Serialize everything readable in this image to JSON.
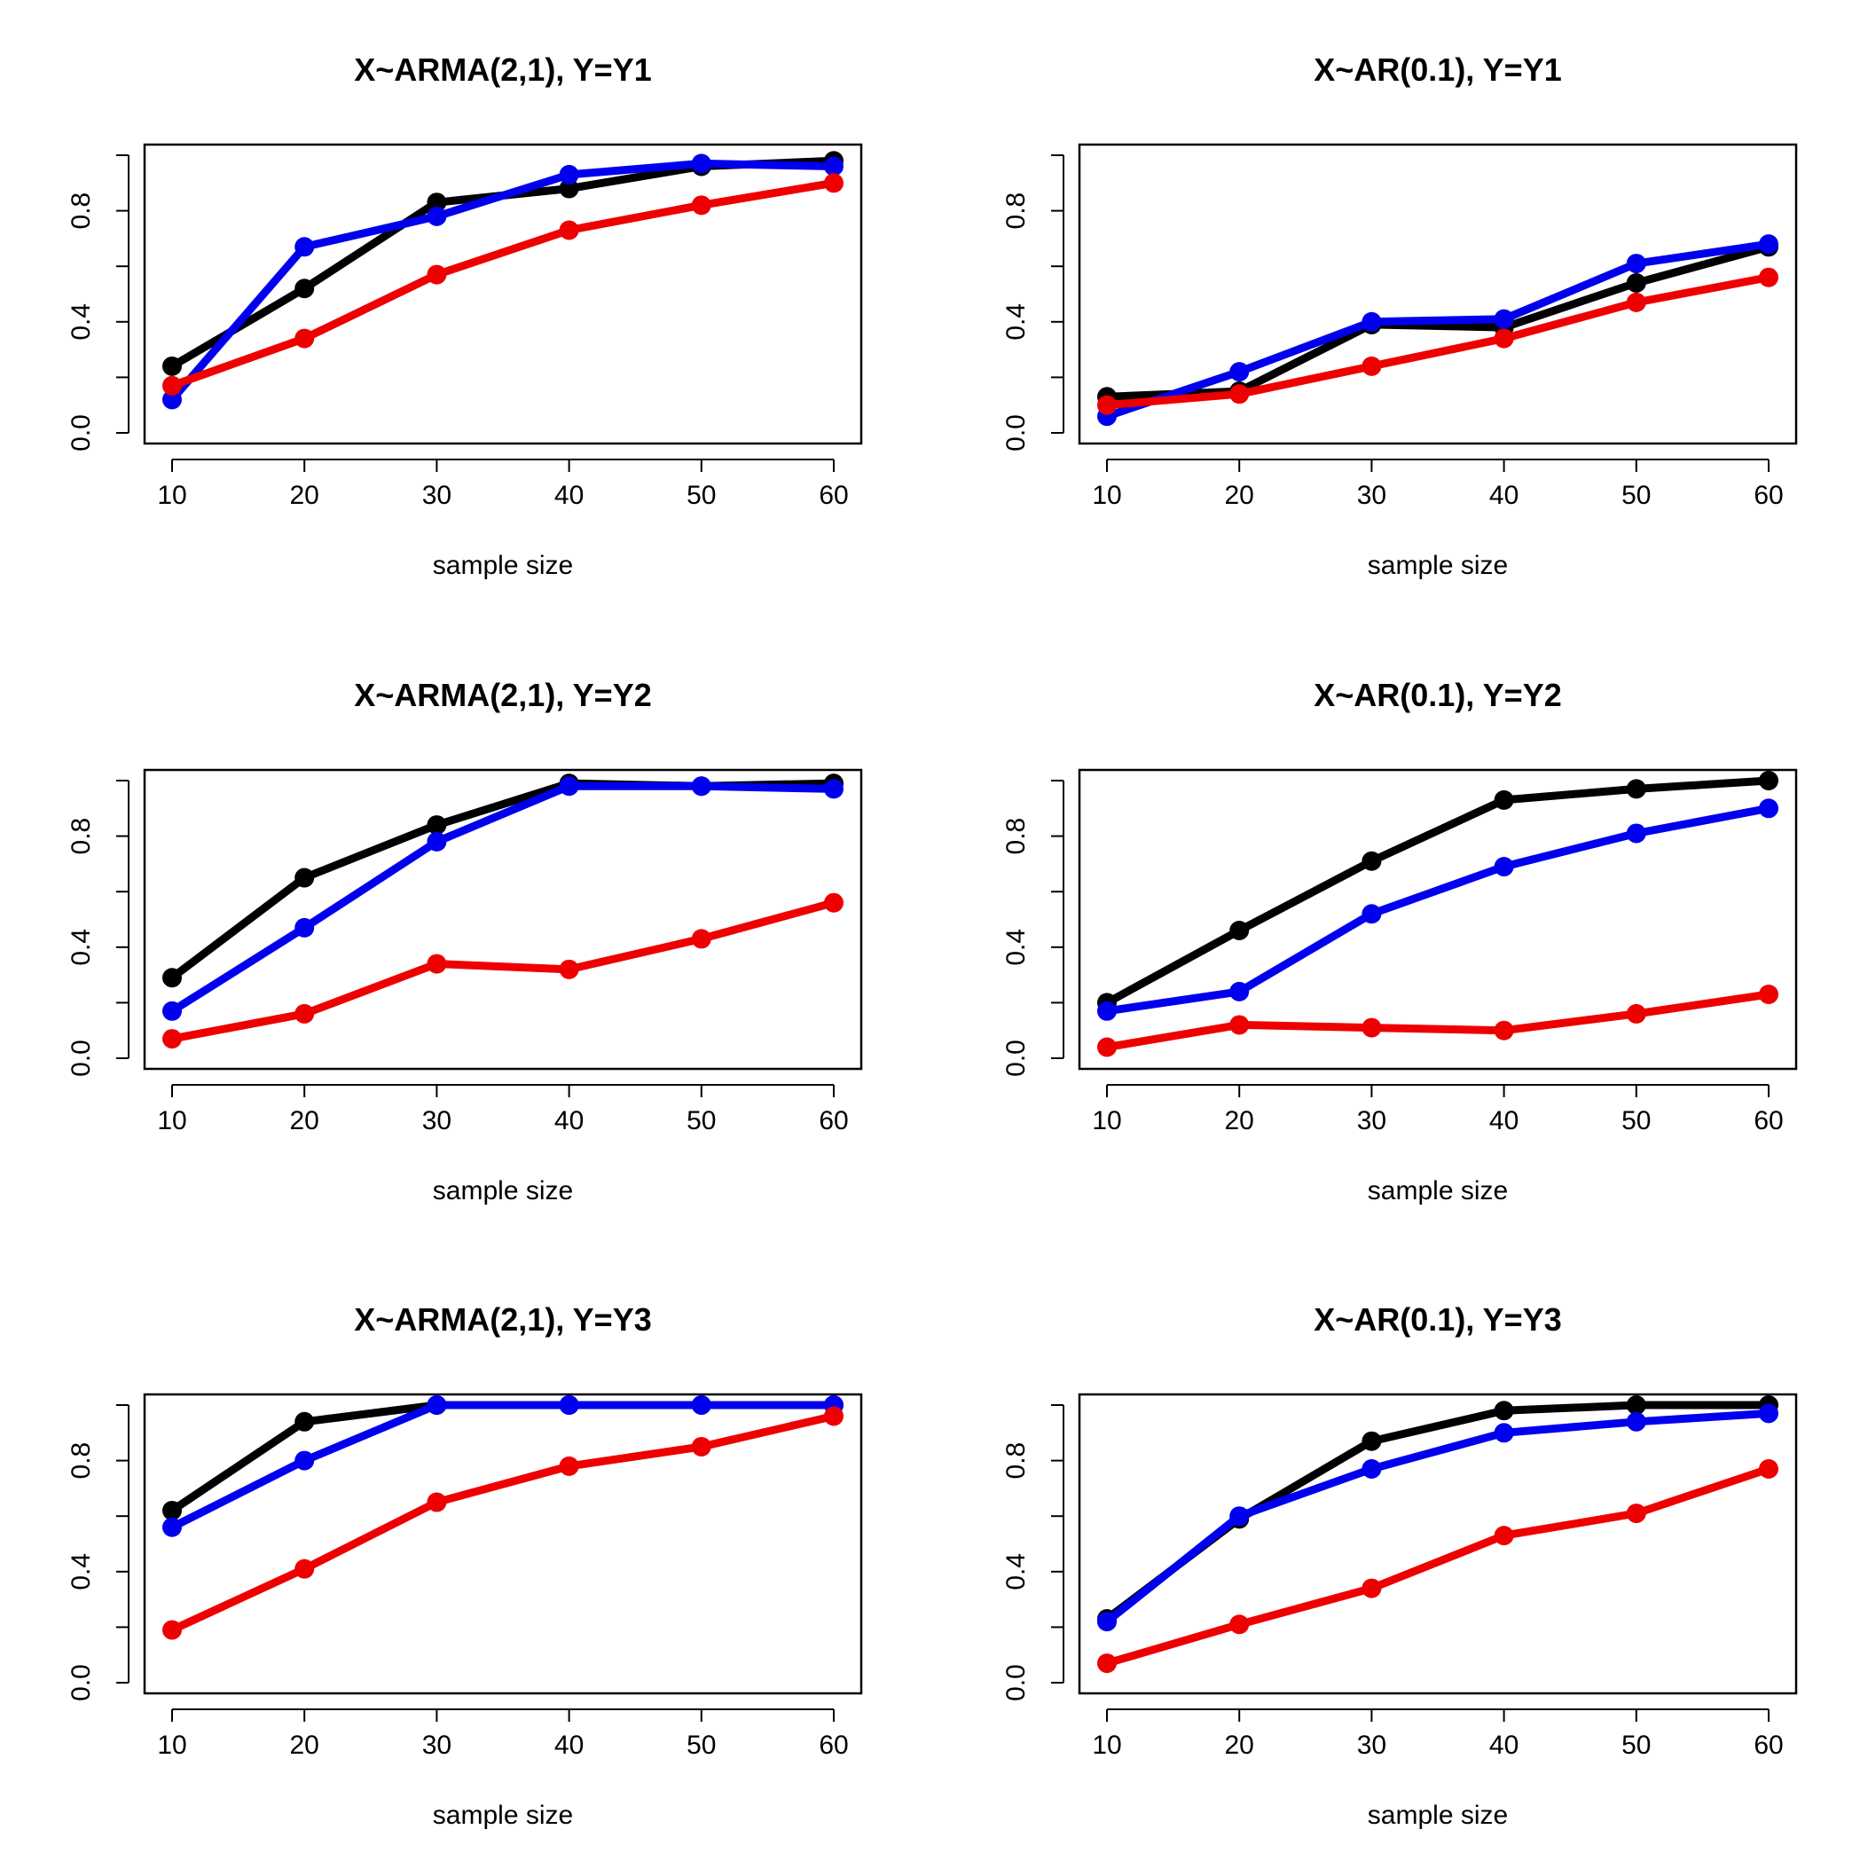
{
  "series_colors": {
    "black": "#000000",
    "blue": "#0000ee",
    "red": "#ee0000"
  },
  "chart_data": [
    {
      "type": "line",
      "title": "X~ARMA(2,1),   Y=Y1",
      "xlabel": "sample size",
      "ylabel": "",
      "x": [
        10,
        20,
        30,
        40,
        50,
        60
      ],
      "xticks": [
        "10",
        "20",
        "30",
        "40",
        "50",
        "60"
      ],
      "yticks": [
        "0.0",
        "0.4",
        "0.8"
      ],
      "ylim": [
        0,
        1
      ],
      "series": [
        {
          "name": "black",
          "values": [
            0.24,
            0.52,
            0.83,
            0.88,
            0.96,
            0.98
          ]
        },
        {
          "name": "blue",
          "values": [
            0.12,
            0.67,
            0.78,
            0.93,
            0.97,
            0.96
          ]
        },
        {
          "name": "red",
          "values": [
            0.17,
            0.34,
            0.57,
            0.73,
            0.82,
            0.9
          ]
        }
      ]
    },
    {
      "type": "line",
      "title": "X~AR(0.1),   Y=Y1",
      "xlabel": "sample size",
      "ylabel": "",
      "x": [
        10,
        20,
        30,
        40,
        50,
        60
      ],
      "xticks": [
        "10",
        "20",
        "30",
        "40",
        "50",
        "60"
      ],
      "yticks": [
        "0.0",
        "0.4",
        "0.8"
      ],
      "ylim": [
        0,
        1
      ],
      "series": [
        {
          "name": "black",
          "values": [
            0.13,
            0.15,
            0.39,
            0.38,
            0.54,
            0.67
          ]
        },
        {
          "name": "blue",
          "values": [
            0.06,
            0.22,
            0.4,
            0.41,
            0.61,
            0.68
          ]
        },
        {
          "name": "red",
          "values": [
            0.1,
            0.14,
            0.24,
            0.34,
            0.47,
            0.56
          ]
        }
      ]
    },
    {
      "type": "line",
      "title": "X~ARMA(2,1),   Y=Y2",
      "xlabel": "sample size",
      "ylabel": "",
      "x": [
        10,
        20,
        30,
        40,
        50,
        60
      ],
      "xticks": [
        "10",
        "20",
        "30",
        "40",
        "50",
        "60"
      ],
      "yticks": [
        "0.0",
        "0.4",
        "0.8"
      ],
      "ylim": [
        0,
        1
      ],
      "series": [
        {
          "name": "black",
          "values": [
            0.29,
            0.65,
            0.84,
            0.99,
            0.98,
            0.99
          ]
        },
        {
          "name": "blue",
          "values": [
            0.17,
            0.47,
            0.78,
            0.98,
            0.98,
            0.97
          ]
        },
        {
          "name": "red",
          "values": [
            0.07,
            0.16,
            0.34,
            0.32,
            0.43,
            0.56
          ]
        }
      ]
    },
    {
      "type": "line",
      "title": "X~AR(0.1),   Y=Y2",
      "xlabel": "sample size",
      "ylabel": "",
      "x": [
        10,
        20,
        30,
        40,
        50,
        60
      ],
      "xticks": [
        "10",
        "20",
        "30",
        "40",
        "50",
        "60"
      ],
      "yticks": [
        "0.0",
        "0.4",
        "0.8"
      ],
      "ylim": [
        0,
        1
      ],
      "series": [
        {
          "name": "black",
          "values": [
            0.2,
            0.46,
            0.71,
            0.93,
            0.97,
            1.0
          ]
        },
        {
          "name": "blue",
          "values": [
            0.17,
            0.24,
            0.52,
            0.69,
            0.81,
            0.9
          ]
        },
        {
          "name": "red",
          "values": [
            0.04,
            0.12,
            0.11,
            0.1,
            0.16,
            0.23
          ]
        }
      ]
    },
    {
      "type": "line",
      "title": "X~ARMA(2,1),   Y=Y3",
      "xlabel": "sample size",
      "ylabel": "",
      "x": [
        10,
        20,
        30,
        40,
        50,
        60
      ],
      "xticks": [
        "10",
        "20",
        "30",
        "40",
        "50",
        "60"
      ],
      "yticks": [
        "0.0",
        "0.4",
        "0.8"
      ],
      "ylim": [
        0,
        1
      ],
      "series": [
        {
          "name": "black",
          "values": [
            0.62,
            0.94,
            1.0,
            1.0,
            1.0,
            1.0
          ]
        },
        {
          "name": "blue",
          "values": [
            0.56,
            0.8,
            1.0,
            1.0,
            1.0,
            1.0
          ]
        },
        {
          "name": "red",
          "values": [
            0.19,
            0.41,
            0.65,
            0.78,
            0.85,
            0.96
          ]
        }
      ]
    },
    {
      "type": "line",
      "title": "X~AR(0.1),   Y=Y3",
      "xlabel": "sample size",
      "ylabel": "",
      "x": [
        10,
        20,
        30,
        40,
        50,
        60
      ],
      "xticks": [
        "10",
        "20",
        "30",
        "40",
        "50",
        "60"
      ],
      "yticks": [
        "0.0",
        "0.4",
        "0.8"
      ],
      "ylim": [
        0,
        1
      ],
      "series": [
        {
          "name": "black",
          "values": [
            0.23,
            0.59,
            0.87,
            0.98,
            1.0,
            1.0
          ]
        },
        {
          "name": "blue",
          "values": [
            0.22,
            0.6,
            0.77,
            0.9,
            0.94,
            0.97
          ]
        },
        {
          "name": "red",
          "values": [
            0.07,
            0.21,
            0.34,
            0.53,
            0.61,
            0.77
          ]
        }
      ]
    }
  ]
}
